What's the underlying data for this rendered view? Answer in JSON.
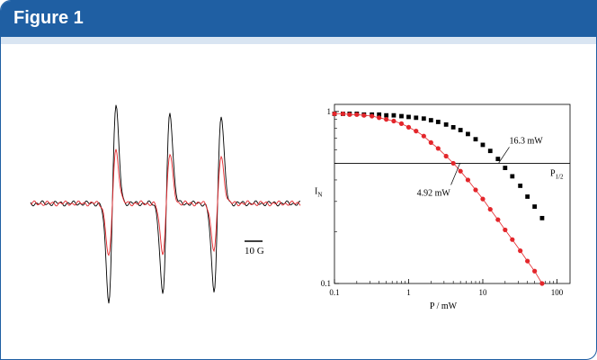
{
  "header": {
    "title": "Figure 1"
  },
  "colors": {
    "header_bg": "#1f5fa3",
    "series_black": "#000000",
    "series_red": "#e3262b"
  },
  "scale_bar": {
    "label": "10 G"
  },
  "chart_data": [
    {
      "type": "line",
      "title": "",
      "xlabel": "",
      "ylabel": "",
      "series": [
        {
          "name": "",
          "color": "#000000",
          "peaks": [
            1.0,
            0.94,
            0.9
          ]
        },
        {
          "name": "",
          "color": "#e3262b",
          "peaks": [
            0.55,
            0.5,
            0.48
          ]
        }
      ],
      "scale_bar_label": "10 G",
      "grid": false
    },
    {
      "type": "scatter",
      "title": "",
      "xlabel": "P / mW",
      "ylabel": "I",
      "ylabel_subscript": "N",
      "xscale": "log",
      "yscale": "log",
      "xlim": [
        0.1,
        150
      ],
      "ylim": [
        0.1,
        1.1
      ],
      "xticks": [
        "0.1",
        "1",
        "10",
        "100"
      ],
      "yticks": [
        "0.1",
        "1"
      ],
      "hline": {
        "y": 0.5,
        "label": "P",
        "label_subscript": "1/2"
      },
      "series": [
        {
          "name": "",
          "color": "#000000",
          "marker": "square",
          "x": [
            0.1,
            0.13,
            0.16,
            0.2,
            0.25,
            0.32,
            0.4,
            0.5,
            0.63,
            0.8,
            1.0,
            1.26,
            1.6,
            2.0,
            2.5,
            3.2,
            4.0,
            5.0,
            6.3,
            8.0,
            10.0,
            12.6,
            16.0,
            20.0,
            25.0,
            32.0,
            40.0,
            50.0,
            63.0
          ],
          "y": [
            0.97,
            0.97,
            0.97,
            0.97,
            0.96,
            0.96,
            0.96,
            0.95,
            0.95,
            0.94,
            0.93,
            0.92,
            0.91,
            0.89,
            0.87,
            0.84,
            0.81,
            0.78,
            0.74,
            0.69,
            0.64,
            0.59,
            0.53,
            0.47,
            0.42,
            0.37,
            0.32,
            0.28,
            0.24
          ]
        },
        {
          "name": "",
          "color": "#e3262b",
          "marker": "circle",
          "x": [
            0.1,
            0.13,
            0.16,
            0.2,
            0.25,
            0.32,
            0.4,
            0.5,
            0.63,
            0.8,
            1.0,
            1.26,
            1.6,
            2.0,
            2.5,
            3.2,
            4.0,
            5.0,
            6.3,
            8.0,
            10.0,
            12.6,
            16.0,
            20.0,
            25.0,
            32.0,
            40.0,
            50.0,
            63.0
          ],
          "y": [
            0.97,
            0.97,
            0.96,
            0.96,
            0.95,
            0.94,
            0.92,
            0.9,
            0.88,
            0.85,
            0.81,
            0.77,
            0.72,
            0.66,
            0.61,
            0.55,
            0.5,
            0.45,
            0.4,
            0.35,
            0.31,
            0.27,
            0.235,
            0.205,
            0.18,
            0.155,
            0.135,
            0.118,
            0.1
          ]
        }
      ],
      "annotations": [
        {
          "text": "16.3 mW",
          "x": 16.3,
          "y": 0.5
        },
        {
          "text": "4.92 mW",
          "x": 4.92,
          "y": 0.5
        }
      ]
    }
  ]
}
